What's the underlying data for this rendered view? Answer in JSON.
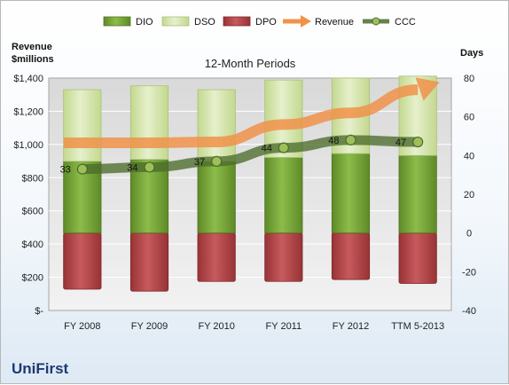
{
  "company": "UniFirst",
  "chart_data": {
    "type": "bar",
    "title": "12-Month Periods",
    "left_axis_title": [
      "Revenue",
      "$millions"
    ],
    "right_axis_title": "Days",
    "categories": [
      "FY 2008",
      "FY 2009",
      "FY 2010",
      "FY 2011",
      "FY 2012",
      "TTM 5-2013"
    ],
    "left_ticks": [
      "$-",
      "$200",
      "$400",
      "$600",
      "$800",
      "$1,000",
      "$1,200",
      "$1,400"
    ],
    "left_ylim": [
      0,
      1400
    ],
    "right_ticks": [
      "-40",
      "-20",
      "0",
      "20",
      "40",
      "60",
      "80"
    ],
    "right_ylim": [
      -40,
      80
    ],
    "grid": true,
    "legend_position": "top",
    "series": [
      {
        "name": "DIO",
        "kind": "stacked-bar",
        "color": "#77a33a",
        "values": [
          37,
          38,
          37,
          39,
          41,
          40
        ]
      },
      {
        "name": "DSO",
        "kind": "stacked-bar",
        "color": "#d6e6b0",
        "values": [
          37,
          38,
          37,
          40,
          39,
          41
        ]
      },
      {
        "name": "DPO",
        "kind": "negative-bar",
        "color": "#b3474a",
        "values": [
          -29,
          -30,
          -25,
          -25,
          -24,
          -26
        ]
      },
      {
        "name": "Revenue",
        "kind": "arrow-line",
        "color": "#f0924a",
        "axis": "left",
        "values": [
          1010,
          1010,
          1015,
          1120,
          1190,
          1330
        ]
      },
      {
        "name": "CCC",
        "kind": "line",
        "color": "#4b6b2c",
        "axis": "right",
        "values": [
          33,
          34,
          37,
          44,
          48,
          47
        ],
        "labels": [
          "33",
          "34",
          "37",
          "44",
          "48",
          "47"
        ]
      }
    ]
  }
}
